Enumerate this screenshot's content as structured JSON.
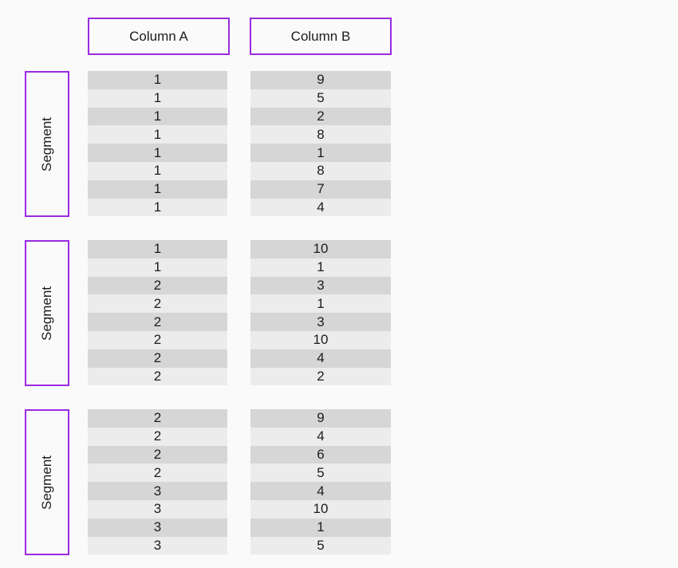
{
  "colors": {
    "accent_purple": "#9a2be2",
    "row_dark": "#d6d6d6",
    "row_light": "#ececec",
    "text_color": "#1c1c1c",
    "page_bg": "#fafafa"
  },
  "headers": [
    {
      "label": "Column A"
    },
    {
      "label": "Column B"
    }
  ],
  "groups": [
    {
      "segment_label": "Segment",
      "col_a": [
        "1",
        "1",
        "1",
        "1",
        "1",
        "1",
        "1",
        "1"
      ],
      "col_b": [
        "9",
        "5",
        "2",
        "8",
        "1",
        "8",
        "7",
        "4"
      ]
    },
    {
      "segment_label": "Segment",
      "col_a": [
        "1",
        "1",
        "2",
        "2",
        "2",
        "2",
        "2",
        "2"
      ],
      "col_b": [
        "10",
        "1",
        "3",
        "1",
        "3",
        "10",
        "4",
        "2"
      ]
    },
    {
      "segment_label": "Segment",
      "col_a": [
        "2",
        "2",
        "2",
        "2",
        "3",
        "3",
        "3",
        "3"
      ],
      "col_b": [
        "9",
        "4",
        "6",
        "5",
        "4",
        "10",
        "1",
        "5"
      ]
    }
  ]
}
